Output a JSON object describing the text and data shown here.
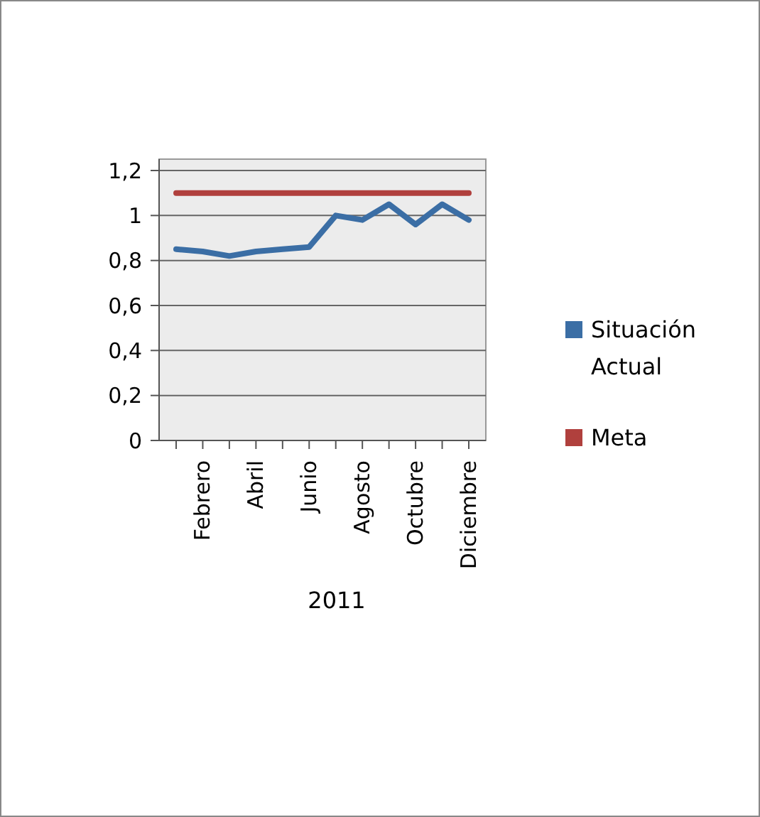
{
  "chart_data": {
    "type": "line",
    "xlabel": "2011",
    "categories": [
      null,
      "Febrero",
      null,
      "Abril",
      null,
      "Junio",
      null,
      "Agosto",
      null,
      "Octubre",
      null,
      "Diciembre"
    ],
    "series": [
      {
        "name": "Situación Actual",
        "color": "#3b6ea5",
        "values": [
          0.85,
          0.84,
          0.82,
          0.84,
          0.85,
          0.86,
          1.0,
          0.98,
          1.05,
          0.96,
          1.05,
          0.98
        ]
      },
      {
        "name": "Meta",
        "color": "#b0403d",
        "values": [
          1.1,
          1.1,
          1.1,
          1.1,
          1.1,
          1.1,
          1.1,
          1.1,
          1.1,
          1.1,
          1.1,
          1.1
        ]
      }
    ],
    "ylim": [
      0,
      1.2
    ],
    "yticks": [
      0,
      {
        "value": 0.2,
        "label": "0,2"
      },
      {
        "value": 0.4,
        "label": "0,4"
      },
      {
        "value": 0.6,
        "label": "0,6"
      },
      {
        "value": 0.8,
        "label": "0,8"
      },
      1,
      {
        "value": 1.2,
        "label": "1,2"
      }
    ],
    "grid": "y",
    "legend": "right",
    "marker": "none",
    "line_style": "solid"
  }
}
